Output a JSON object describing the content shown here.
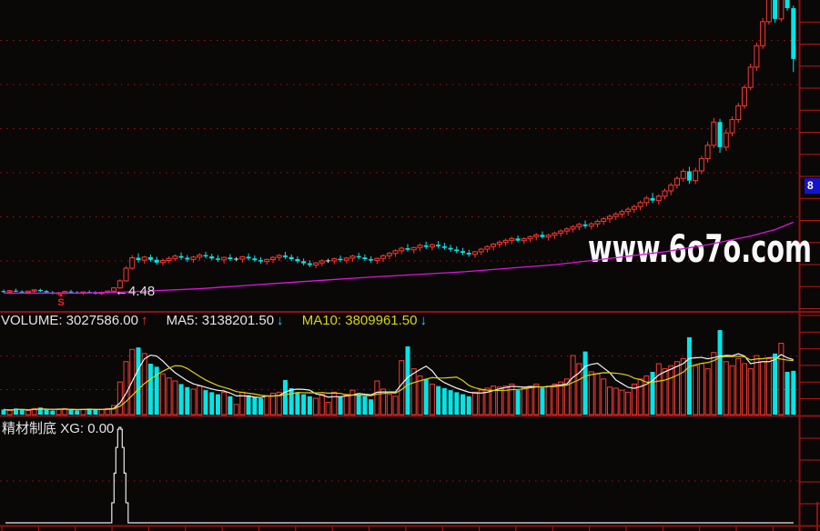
{
  "watermark": {
    "text": "www.6o7o.com"
  },
  "price_panel": {
    "annotation_price": "←4.48",
    "signal_marker": "S",
    "signal_marker_arrow": "▲",
    "axis_badge": "8"
  },
  "volume_panel": {
    "label_volume": "VOLUME: 3027586.00",
    "volume_dir": "↑",
    "label_ma5": "MA5: 3138201.50",
    "ma5_dir": "↓",
    "label_ma10": "MA10: 3809961.50",
    "ma10_dir": "↓"
  },
  "indicator_panel": {
    "name": "精材制底",
    "value": "XG: 0.00"
  },
  "colors": {
    "background": "#0a0707",
    "up": "#fb3a31",
    "down": "#00e6e6",
    "doji": "#dcdcdc",
    "ma_long": "#dd14dd",
    "vol_ma5": "#f2f2f2",
    "vol_ma10": "#d8d50e",
    "grid": "#a11212",
    "axis": "#8b1111",
    "tick": "#b91515",
    "indicator_line": "#e8e8e8",
    "badge": "#1414cc"
  },
  "chart_data": [
    {
      "type": "candlestick",
      "panel": "price",
      "scale": "log",
      "ylim_prices": [
        4.2,
        23.5
      ],
      "grid": "dotted-red-horizontal",
      "legend_position": "none",
      "title": "",
      "annotations": [
        {
          "text": "←4.48",
          "bar": 19,
          "price": 4.48
        },
        {
          "text": "S",
          "bar": 9,
          "type": "signal"
        }
      ],
      "right_axis_label": "8",
      "candles": [
        [
          4.52,
          4.56,
          4.48,
          4.5
        ],
        [
          4.5,
          4.55,
          4.47,
          4.53
        ],
        [
          4.53,
          4.58,
          4.5,
          4.51
        ],
        [
          4.51,
          4.54,
          4.46,
          4.49
        ],
        [
          4.49,
          4.53,
          4.45,
          4.52
        ],
        [
          4.52,
          4.57,
          4.49,
          4.55
        ],
        [
          4.55,
          4.58,
          4.5,
          4.52
        ],
        [
          4.52,
          4.55,
          4.47,
          4.49
        ],
        [
          4.49,
          4.52,
          4.44,
          4.46
        ],
        [
          4.46,
          4.5,
          4.42,
          4.48
        ],
        [
          4.48,
          4.53,
          4.45,
          4.51
        ],
        [
          4.51,
          4.55,
          4.47,
          4.49
        ],
        [
          4.49,
          4.52,
          4.45,
          4.47
        ],
        [
          4.47,
          4.51,
          4.43,
          4.5
        ],
        [
          4.5,
          4.54,
          4.46,
          4.48
        ],
        [
          4.48,
          4.52,
          4.44,
          4.46
        ],
        [
          4.46,
          4.51,
          4.43,
          4.49
        ],
        [
          4.49,
          4.54,
          4.46,
          4.52
        ],
        [
          4.52,
          4.62,
          4.5,
          4.6
        ],
        [
          4.6,
          4.82,
          4.58,
          4.78
        ],
        [
          4.78,
          5.18,
          4.76,
          5.12
        ],
        [
          5.12,
          5.5,
          5.08,
          5.42
        ],
        [
          5.42,
          5.55,
          5.28,
          5.35
        ],
        [
          5.35,
          5.48,
          5.25,
          5.44
        ],
        [
          5.44,
          5.52,
          5.3,
          5.36
        ],
        [
          5.36,
          5.45,
          5.22,
          5.28
        ],
        [
          5.28,
          5.4,
          5.2,
          5.34
        ],
        [
          5.34,
          5.46,
          5.26,
          5.4
        ],
        [
          5.4,
          5.52,
          5.32,
          5.47
        ],
        [
          5.47,
          5.58,
          5.36,
          5.42
        ],
        [
          5.42,
          5.5,
          5.3,
          5.37
        ],
        [
          5.37,
          5.48,
          5.28,
          5.44
        ],
        [
          5.44,
          5.56,
          5.34,
          5.5
        ],
        [
          5.5,
          5.6,
          5.4,
          5.46
        ],
        [
          5.46,
          5.54,
          5.35,
          5.4
        ],
        [
          5.4,
          5.5,
          5.3,
          5.36
        ],
        [
          5.36,
          5.46,
          5.26,
          5.43
        ],
        [
          5.43,
          5.53,
          5.33,
          5.38
        ],
        [
          5.38,
          5.44,
          5.32,
          5.38
        ],
        [
          5.38,
          5.48,
          5.28,
          5.45
        ],
        [
          5.45,
          5.55,
          5.35,
          5.4
        ],
        [
          5.4,
          5.49,
          5.3,
          5.35
        ],
        [
          5.35,
          5.44,
          5.25,
          5.31
        ],
        [
          5.31,
          5.4,
          5.22,
          5.37
        ],
        [
          5.37,
          5.47,
          5.27,
          5.43
        ],
        [
          5.43,
          5.53,
          5.33,
          5.49
        ],
        [
          5.49,
          5.6,
          5.38,
          5.44
        ],
        [
          5.44,
          5.52,
          5.32,
          5.38
        ],
        [
          5.38,
          5.46,
          5.26,
          5.32
        ],
        [
          5.32,
          5.4,
          5.2,
          5.26
        ],
        [
          5.26,
          5.35,
          5.15,
          5.21
        ],
        [
          5.21,
          5.3,
          5.12,
          5.27
        ],
        [
          5.27,
          5.38,
          5.18,
          5.33
        ],
        [
          5.33,
          5.39,
          5.27,
          5.33
        ],
        [
          5.33,
          5.43,
          5.23,
          5.39
        ],
        [
          5.39,
          5.49,
          5.29,
          5.35
        ],
        [
          5.35,
          5.44,
          5.26,
          5.41
        ],
        [
          5.41,
          5.51,
          5.31,
          5.47
        ],
        [
          5.47,
          5.57,
          5.37,
          5.43
        ],
        [
          5.43,
          5.52,
          5.33,
          5.38
        ],
        [
          5.38,
          5.47,
          5.28,
          5.34
        ],
        [
          5.34,
          5.43,
          5.24,
          5.4
        ],
        [
          5.4,
          5.52,
          5.3,
          5.48
        ],
        [
          5.48,
          5.6,
          5.38,
          5.55
        ],
        [
          5.55,
          5.68,
          5.45,
          5.63
        ],
        [
          5.63,
          5.76,
          5.53,
          5.71
        ],
        [
          5.71,
          5.84,
          5.6,
          5.66
        ],
        [
          5.66,
          5.76,
          5.55,
          5.73
        ],
        [
          5.73,
          5.86,
          5.62,
          5.8
        ],
        [
          5.8,
          5.92,
          5.68,
          5.75
        ],
        [
          5.75,
          5.86,
          5.64,
          5.82
        ],
        [
          5.82,
          5.94,
          5.7,
          5.77
        ],
        [
          5.77,
          5.88,
          5.66,
          5.72
        ],
        [
          5.72,
          5.82,
          5.6,
          5.67
        ],
        [
          5.67,
          5.77,
          5.55,
          5.62
        ],
        [
          5.62,
          5.72,
          5.5,
          5.57
        ],
        [
          5.57,
          5.66,
          5.45,
          5.52
        ],
        [
          5.52,
          5.62,
          5.42,
          5.6
        ],
        [
          5.6,
          5.72,
          5.5,
          5.68
        ],
        [
          5.68,
          5.8,
          5.58,
          5.76
        ],
        [
          5.76,
          5.88,
          5.64,
          5.84
        ],
        [
          5.84,
          5.96,
          5.72,
          5.9
        ],
        [
          5.9,
          6.02,
          5.78,
          5.96
        ],
        [
          5.96,
          6.08,
          5.84,
          6.02
        ],
        [
          6.02,
          6.12,
          5.9,
          5.95
        ],
        [
          5.95,
          6.06,
          5.84,
          6.01
        ],
        [
          6.01,
          6.12,
          5.9,
          6.08
        ],
        [
          6.08,
          6.2,
          5.96,
          6.14
        ],
        [
          6.14,
          6.26,
          6.02,
          6.07
        ],
        [
          6.07,
          6.18,
          5.95,
          6.13
        ],
        [
          6.13,
          6.25,
          6.01,
          6.2
        ],
        [
          6.2,
          6.33,
          6.08,
          6.27
        ],
        [
          6.27,
          6.4,
          6.14,
          6.34
        ],
        [
          6.34,
          6.48,
          6.22,
          6.42
        ],
        [
          6.42,
          6.56,
          6.3,
          6.5
        ],
        [
          6.5,
          6.64,
          6.36,
          6.44
        ],
        [
          6.44,
          6.58,
          6.32,
          6.52
        ],
        [
          6.52,
          6.68,
          6.4,
          6.61
        ],
        [
          6.61,
          6.77,
          6.48,
          6.7
        ],
        [
          6.7,
          6.86,
          6.56,
          6.79
        ],
        [
          6.79,
          6.95,
          6.65,
          6.88
        ],
        [
          6.88,
          7.05,
          6.74,
          6.97
        ],
        [
          6.97,
          7.14,
          6.82,
          7.06
        ],
        [
          7.06,
          7.24,
          6.92,
          7.16
        ],
        [
          7.16,
          7.4,
          7.02,
          7.32
        ],
        [
          7.32,
          7.6,
          7.18,
          7.5
        ],
        [
          7.5,
          7.72,
          7.3,
          7.4
        ],
        [
          7.4,
          7.66,
          7.25,
          7.58
        ],
        [
          7.58,
          7.9,
          7.45,
          7.8
        ],
        [
          7.8,
          8.15,
          7.62,
          8.05
        ],
        [
          8.05,
          8.45,
          7.9,
          8.35
        ],
        [
          8.35,
          8.8,
          8.2,
          8.68
        ],
        [
          8.68,
          8.9,
          8.1,
          8.25
        ],
        [
          8.25,
          8.85,
          8.1,
          8.7
        ],
        [
          8.7,
          9.45,
          8.55,
          9.3
        ],
        [
          9.3,
          10.2,
          9.1,
          10.0
        ],
        [
          10.0,
          11.6,
          9.85,
          11.35
        ],
        [
          11.35,
          11.55,
          9.6,
          9.9
        ],
        [
          9.9,
          10.9,
          9.7,
          10.7
        ],
        [
          10.7,
          11.7,
          10.5,
          11.5
        ],
        [
          11.5,
          12.6,
          11.3,
          12.4
        ],
        [
          12.4,
          13.9,
          12.2,
          13.7
        ],
        [
          13.7,
          15.6,
          13.5,
          15.3
        ],
        [
          15.3,
          17.5,
          15.0,
          17.2
        ],
        [
          17.2,
          20.0,
          16.9,
          19.6
        ],
        [
          19.6,
          22.8,
          19.3,
          22.4
        ],
        [
          22.4,
          23.46,
          19.5,
          19.9
        ],
        [
          19.9,
          22.6,
          19.6,
          22.3
        ],
        [
          22.3,
          22.7,
          20.8,
          21.1
        ],
        [
          21.1,
          21.4,
          14.9,
          16.0
        ]
      ],
      "ma_long": {
        "name": "long-period MA (magenta)",
        "points": [
          [
            0,
            4.47
          ],
          [
            12,
            4.47
          ],
          [
            20,
            4.5
          ],
          [
            32,
            4.58
          ],
          [
            45,
            4.72
          ],
          [
            60,
            4.88
          ],
          [
            75,
            5.02
          ],
          [
            90,
            5.22
          ],
          [
            100,
            5.42
          ],
          [
            108,
            5.6
          ],
          [
            115,
            5.82
          ],
          [
            122,
            6.1
          ],
          [
            126,
            6.32
          ],
          [
            129,
            6.58
          ]
        ]
      }
    },
    {
      "type": "bar",
      "panel": "volume",
      "title": "VOLUME",
      "last_values": {
        "volume": "3027586.00",
        "ma5": "3138201.50",
        "ma10": "3809961.50"
      },
      "values_rel": [
        0.05,
        0.04,
        0.06,
        0.05,
        0.04,
        0.06,
        0.07,
        0.05,
        0.04,
        0.05,
        0.06,
        0.05,
        0.04,
        0.05,
        0.06,
        0.05,
        0.05,
        0.06,
        0.09,
        0.32,
        0.52,
        0.64,
        0.66,
        0.6,
        0.5,
        0.47,
        0.4,
        0.36,
        0.33,
        0.3,
        0.27,
        0.25,
        0.28,
        0.24,
        0.22,
        0.2,
        0.22,
        0.18,
        0.1,
        0.22,
        0.19,
        0.17,
        0.16,
        0.18,
        0.21,
        0.22,
        0.34,
        0.26,
        0.22,
        0.2,
        0.18,
        0.16,
        0.2,
        0.12,
        0.22,
        0.18,
        0.2,
        0.24,
        0.2,
        0.18,
        0.15,
        0.33,
        0.25,
        0.2,
        0.18,
        0.53,
        0.67,
        0.45,
        0.38,
        0.35,
        0.3,
        0.28,
        0.26,
        0.24,
        0.22,
        0.2,
        0.18,
        0.22,
        0.24,
        0.26,
        0.28,
        0.27,
        0.28,
        0.3,
        0.24,
        0.26,
        0.28,
        0.3,
        0.26,
        0.28,
        0.3,
        0.32,
        0.35,
        0.58,
        0.5,
        0.62,
        0.42,
        0.4,
        0.35,
        0.27,
        0.26,
        0.24,
        0.22,
        0.3,
        0.35,
        0.38,
        0.42,
        0.5,
        0.45,
        0.48,
        0.52,
        0.55,
        0.76,
        0.48,
        0.5,
        0.45,
        0.61,
        0.83,
        0.52,
        0.48,
        0.55,
        0.5,
        0.45,
        0.58,
        0.52,
        0.55,
        0.6,
        0.7,
        0.42,
        0.43
      ],
      "overlays": [
        {
          "name": "MA5",
          "window": 5,
          "color_key": "vol_ma5"
        },
        {
          "name": "MA10",
          "window": 10,
          "color_key": "vol_ma10"
        }
      ]
    },
    {
      "type": "line",
      "panel": "indicator",
      "name": "精材制底",
      "value_label": "XG: 0.00",
      "baseline_value": 0,
      "spike": {
        "bar": 19,
        "peak_rel": 1.0
      }
    }
  ]
}
